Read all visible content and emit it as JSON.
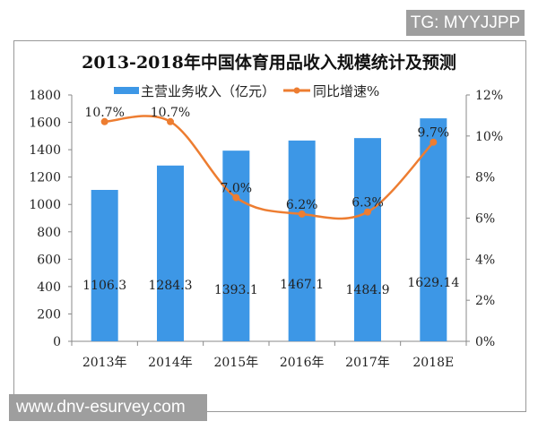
{
  "watermarks": {
    "top_right": "TG: MYYJJPP",
    "bottom_left": "www.dnv-esurvey.com"
  },
  "chart_data": {
    "type": "bar+line",
    "title": "2013-2018年中国体育用品收入规模统计及预测",
    "categories": [
      "2013年",
      "2014年",
      "2015年",
      "2016年",
      "2017年",
      "2018E"
    ],
    "series": [
      {
        "name": "主营业务收入（亿元）",
        "type": "bar",
        "axis": "left",
        "color": "#3d97e6",
        "values": [
          1106.3,
          1284.3,
          1393.1,
          1467.1,
          1484.9,
          1629.14
        ],
        "labels": [
          "1106.3",
          "1284.3",
          "1393.1",
          "1467.1",
          "1484.9",
          "1629.14"
        ]
      },
      {
        "name": "同比增速%",
        "type": "line",
        "axis": "right",
        "color": "#ed7d31",
        "values": [
          10.7,
          10.7,
          7.0,
          6.2,
          6.3,
          9.7
        ],
        "labels": [
          "10.7%",
          "10.7%",
          "7.0%",
          "6.2%",
          "6.3%",
          "9.7%"
        ]
      }
    ],
    "left_axis": {
      "range": [
        0,
        1800
      ],
      "ticks": [
        "0",
        "200",
        "400",
        "600",
        "800",
        "1000",
        "1200",
        "1400",
        "1600",
        "1800"
      ]
    },
    "right_axis": {
      "range": [
        0,
        12
      ],
      "ticks": [
        "0%",
        "2%",
        "4%",
        "6%",
        "8%",
        "10%",
        "12%"
      ]
    },
    "legend": "top",
    "grid": false
  }
}
